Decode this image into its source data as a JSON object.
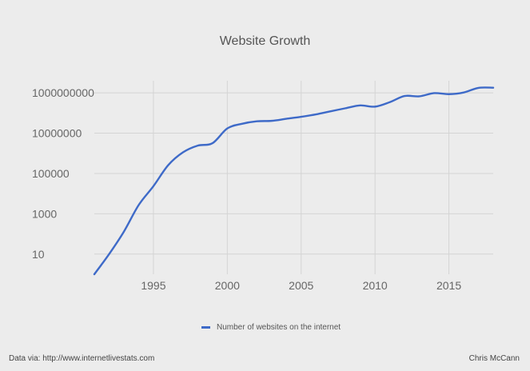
{
  "chart_data": {
    "type": "line",
    "title": "Website Growth",
    "xlabel": "",
    "ylabel": "",
    "yscale": "log",
    "xlim": [
      1991,
      2018
    ],
    "ylim_log10": [
      0,
      9.6
    ],
    "x_ticks": [
      "1995",
      "2000",
      "2005",
      "2010",
      "2015"
    ],
    "y_ticks": [
      "10",
      "1000",
      "100000",
      "10000000",
      "1000000000"
    ],
    "grid": true,
    "legend_position": "bottom",
    "series": [
      {
        "name": "Number of websites on the internet",
        "color": "#3e6ac8",
        "x": [
          1991,
          1992,
          1993,
          1994,
          1995,
          1996,
          1997,
          1998,
          1999,
          2000,
          2001,
          2002,
          2003,
          2004,
          2005,
          2006,
          2007,
          2008,
          2009,
          2010,
          2011,
          2012,
          2013,
          2014,
          2015,
          2016,
          2017,
          2018
        ],
        "y": [
          1,
          10,
          130,
          2700,
          23500,
          257601,
          1117255,
          2410067,
          3177453,
          17087182,
          29254370,
          38760373,
          40912332,
          51611646,
          64780617,
          85507314,
          121892559,
          172338726,
          238027855,
          206956723,
          346004403,
          697089489,
          672985183,
          968882453,
          863105652,
          1045534808,
          1766926408,
          1800000000
        ]
      }
    ]
  },
  "footer": {
    "source": "Data via: http://www.internetlivestats.com",
    "author": "Chris McCann"
  }
}
